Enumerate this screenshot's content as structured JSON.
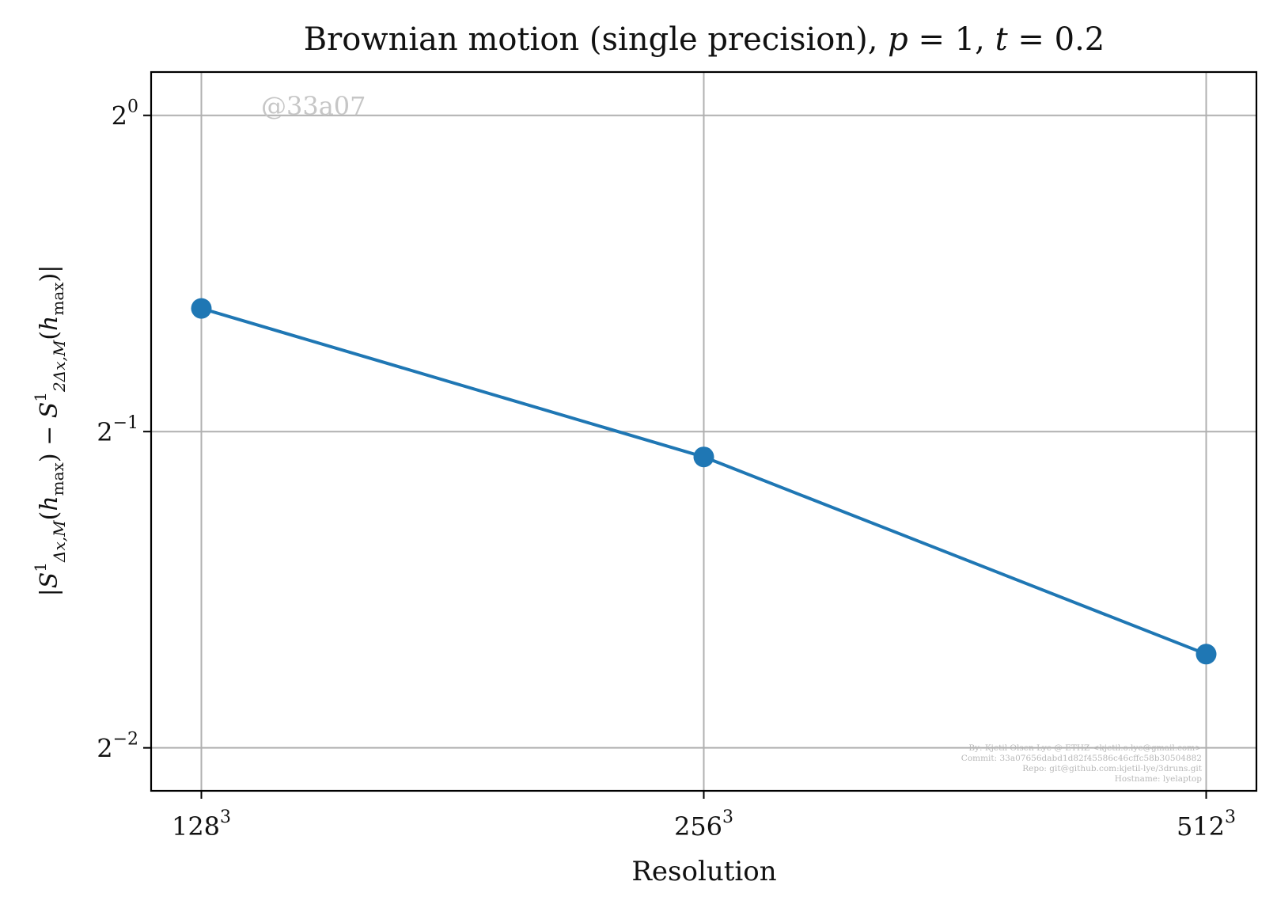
{
  "chart_data": {
    "type": "line",
    "title": "Brownian motion (single precision), p = 1, t = 0.2",
    "xlabel": "Resolution",
    "ylabel": "|S¹_{Δx,M}(h_max) − S¹_{2Δx,M}(h_max)|",
    "x_scale": "log2",
    "y_scale": "log2",
    "x_ticks": [
      {
        "value": 128,
        "base": "128",
        "exp": "3"
      },
      {
        "value": 256,
        "base": "256",
        "exp": "3"
      },
      {
        "value": 512,
        "base": "512",
        "exp": "3"
      }
    ],
    "y_ticks": [
      {
        "value": 1,
        "base": "2",
        "exp": "0"
      },
      {
        "value": 0.5,
        "base": "2",
        "exp": "−1"
      },
      {
        "value": 0.25,
        "base": "2",
        "exp": "−2"
      }
    ],
    "xlim_log2": [
      6.9,
      9.1
    ],
    "ylim_log2": [
      -2.136,
      0.137
    ],
    "grid": true,
    "series": [
      {
        "color": "#1f77b4",
        "marker": "circle",
        "x": [
          128,
          256,
          512
        ],
        "y": [
          0.655,
          0.473,
          0.307
        ]
      }
    ],
    "watermark": "@33a07",
    "footer": [
      "By: Kjetil Olsen Lye @ ETHZ <kjetil.o.lye@gmail.com>",
      "Commit: 33a07656dabd1d82f45586c46cffc58b30504882",
      "Repo: git@github.com:kjetil-lye/3druns.git",
      "Hostname: lyelaptop"
    ]
  }
}
